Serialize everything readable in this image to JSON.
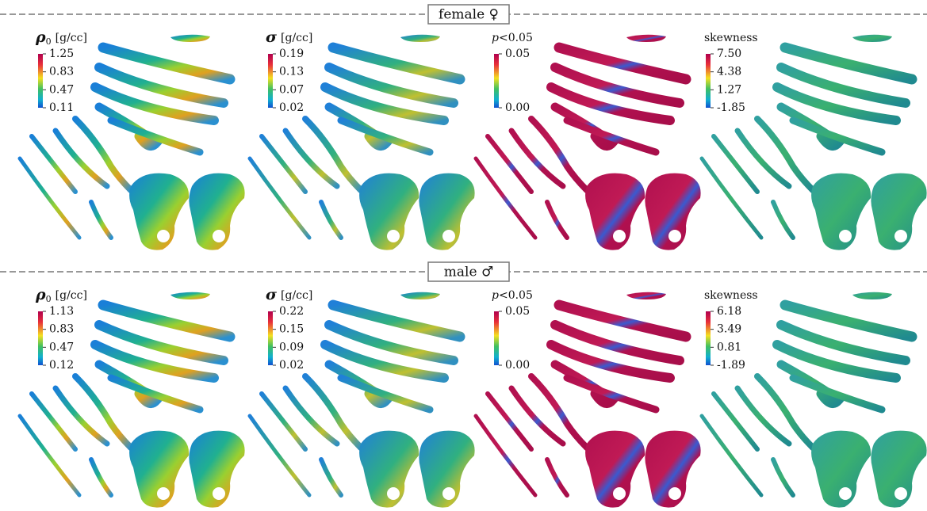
{
  "sections": [
    {
      "title": "female ♀",
      "panels": [
        {
          "label": {
            "symbol": "ρ",
            "subscript": "0",
            "unit": "[g/cc]"
          },
          "ticks": [
            "1.25",
            "0.83",
            "0.47",
            "0.11"
          ]
        },
        {
          "label": {
            "symbol": "σ",
            "unit": "[g/cc]"
          },
          "ticks": [
            "0.19",
            "0.13",
            "0.07",
            "0.02"
          ]
        },
        {
          "label": {
            "symbol": "p",
            "unit": "<0.05"
          },
          "ticks": [
            "0.05",
            "0.00"
          ]
        },
        {
          "label": {
            "unit": "skewness"
          },
          "ticks": [
            "7.50",
            "4.38",
            "1.27",
            "-1.85"
          ]
        }
      ]
    },
    {
      "title": "male ♂",
      "panels": [
        {
          "label": {
            "symbol": "ρ",
            "subscript": "0",
            "unit": "[g/cc]"
          },
          "ticks": [
            "1.13",
            "0.83",
            "0.47",
            "0.12"
          ]
        },
        {
          "label": {
            "symbol": "σ",
            "unit": "[g/cc]"
          },
          "ticks": [
            "0.22",
            "0.15",
            "0.09",
            "0.02"
          ]
        },
        {
          "label": {
            "symbol": "p",
            "unit": "<0.05"
          },
          "ticks": [
            "0.05",
            "0.00"
          ]
        },
        {
          "label": {
            "unit": "skewness"
          },
          "ticks": [
            "6.18",
            "3.49",
            "0.81",
            "-1.89"
          ]
        }
      ]
    }
  ]
}
